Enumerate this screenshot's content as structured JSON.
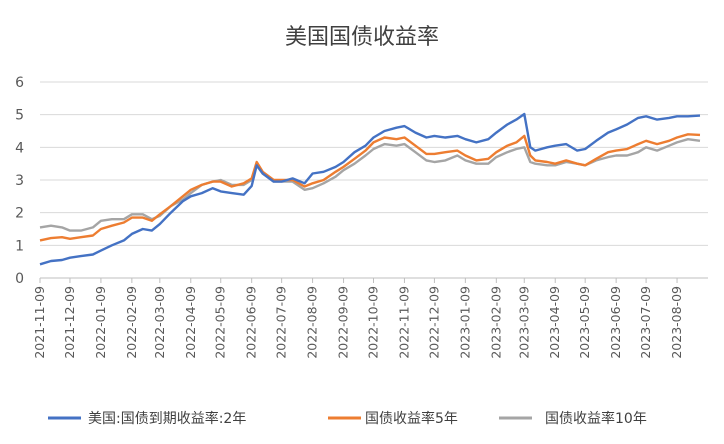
{
  "chart_data": {
    "type": "line",
    "title": "美国国债收益率",
    "xlabel": "",
    "ylabel": "",
    "ylim": [
      0,
      6
    ],
    "yticks": [
      "0",
      "1",
      "2",
      "3",
      "4",
      "5",
      "6"
    ],
    "xticks": [
      "2021-11-09",
      "2021-12-09",
      "2022-01-09",
      "2022-02-09",
      "2022-03-09",
      "2022-04-09",
      "2022-05-09",
      "2022-06-09",
      "2022-07-09",
      "2022-08-09",
      "2022-09-09",
      "2022-10-09",
      "2022-11-09",
      "2022-12-09",
      "2023-01-09",
      "2023-02-09",
      "2023-03-09",
      "2023-04-09",
      "2023-05-09",
      "2023-06-09",
      "2023-07-09",
      "2023-08-09"
    ],
    "grid": "horizontal",
    "legend": "bottom",
    "x": [
      "2021-11-09",
      "2021-11-20",
      "2021-12-01",
      "2021-12-09",
      "2021-12-20",
      "2022-01-01",
      "2022-01-09",
      "2022-01-20",
      "2022-02-01",
      "2022-02-09",
      "2022-02-20",
      "2022-03-01",
      "2022-03-09",
      "2022-03-20",
      "2022-04-01",
      "2022-04-09",
      "2022-04-20",
      "2022-05-01",
      "2022-05-09",
      "2022-05-20",
      "2022-06-01",
      "2022-06-09",
      "2022-06-14",
      "2022-06-20",
      "2022-07-01",
      "2022-07-09",
      "2022-07-20",
      "2022-08-01",
      "2022-08-09",
      "2022-08-20",
      "2022-09-01",
      "2022-09-09",
      "2022-09-20",
      "2022-10-01",
      "2022-10-09",
      "2022-10-20",
      "2022-11-01",
      "2022-11-09",
      "2022-11-20",
      "2022-12-01",
      "2022-12-09",
      "2022-12-20",
      "2023-01-01",
      "2023-01-09",
      "2023-01-20",
      "2023-02-01",
      "2023-02-09",
      "2023-02-20",
      "2023-03-01",
      "2023-03-09",
      "2023-03-15",
      "2023-03-20",
      "2023-04-01",
      "2023-04-09",
      "2023-04-20",
      "2023-05-01",
      "2023-05-09",
      "2023-05-20",
      "2023-06-01",
      "2023-06-09",
      "2023-06-20",
      "2023-07-01",
      "2023-07-09",
      "2023-07-20",
      "2023-08-01",
      "2023-08-09",
      "2023-08-20",
      "2023-09-01"
    ],
    "series": [
      {
        "name": "美国:国债到期收益率:2年",
        "color": "#4472C4",
        "values": [
          0.42,
          0.52,
          0.55,
          0.62,
          0.67,
          0.72,
          0.84,
          1.0,
          1.15,
          1.35,
          1.5,
          1.45,
          1.65,
          2.0,
          2.35,
          2.5,
          2.6,
          2.75,
          2.65,
          2.6,
          2.55,
          2.82,
          3.45,
          3.2,
          2.95,
          2.95,
          3.05,
          2.9,
          3.2,
          3.25,
          3.4,
          3.55,
          3.85,
          4.05,
          4.3,
          4.5,
          4.6,
          4.65,
          4.45,
          4.3,
          4.35,
          4.3,
          4.35,
          4.25,
          4.15,
          4.25,
          4.45,
          4.7,
          4.85,
          5.02,
          4.0,
          3.9,
          4.0,
          4.05,
          4.1,
          3.9,
          3.95,
          4.2,
          4.45,
          4.55,
          4.7,
          4.9,
          4.95,
          4.85,
          4.9,
          4.95,
          4.95,
          4.97
        ]
      },
      {
        "name": "国债收益率5年",
        "color": "#ED7D31",
        "values": [
          1.15,
          1.22,
          1.25,
          1.2,
          1.25,
          1.3,
          1.5,
          1.6,
          1.7,
          1.85,
          1.85,
          1.75,
          1.95,
          2.2,
          2.5,
          2.7,
          2.85,
          2.95,
          2.95,
          2.8,
          2.9,
          3.05,
          3.55,
          3.25,
          3.0,
          3.0,
          3.0,
          2.8,
          2.9,
          3.0,
          3.25,
          3.4,
          3.65,
          3.9,
          4.15,
          4.3,
          4.25,
          4.3,
          4.05,
          3.8,
          3.8,
          3.85,
          3.9,
          3.75,
          3.6,
          3.65,
          3.85,
          4.05,
          4.15,
          4.35,
          3.75,
          3.6,
          3.55,
          3.5,
          3.6,
          3.5,
          3.45,
          3.65,
          3.85,
          3.9,
          3.95,
          4.1,
          4.2,
          4.1,
          4.2,
          4.3,
          4.4,
          4.38
        ]
      },
      {
        "name": "国债收益率10年",
        "color": "#A5A5A5",
        "values": [
          1.55,
          1.6,
          1.55,
          1.45,
          1.45,
          1.55,
          1.75,
          1.8,
          1.8,
          1.95,
          1.95,
          1.8,
          1.9,
          2.2,
          2.4,
          2.6,
          2.85,
          2.95,
          3.0,
          2.85,
          2.85,
          3.0,
          3.45,
          3.2,
          2.95,
          2.95,
          2.95,
          2.7,
          2.75,
          2.9,
          3.1,
          3.3,
          3.5,
          3.75,
          3.95,
          4.1,
          4.05,
          4.1,
          3.85,
          3.6,
          3.55,
          3.6,
          3.75,
          3.6,
          3.5,
          3.5,
          3.7,
          3.85,
          3.95,
          4.0,
          3.55,
          3.5,
          3.45,
          3.45,
          3.55,
          3.5,
          3.45,
          3.6,
          3.7,
          3.75,
          3.75,
          3.85,
          4.0,
          3.9,
          4.05,
          4.15,
          4.25,
          4.2
        ]
      }
    ]
  }
}
